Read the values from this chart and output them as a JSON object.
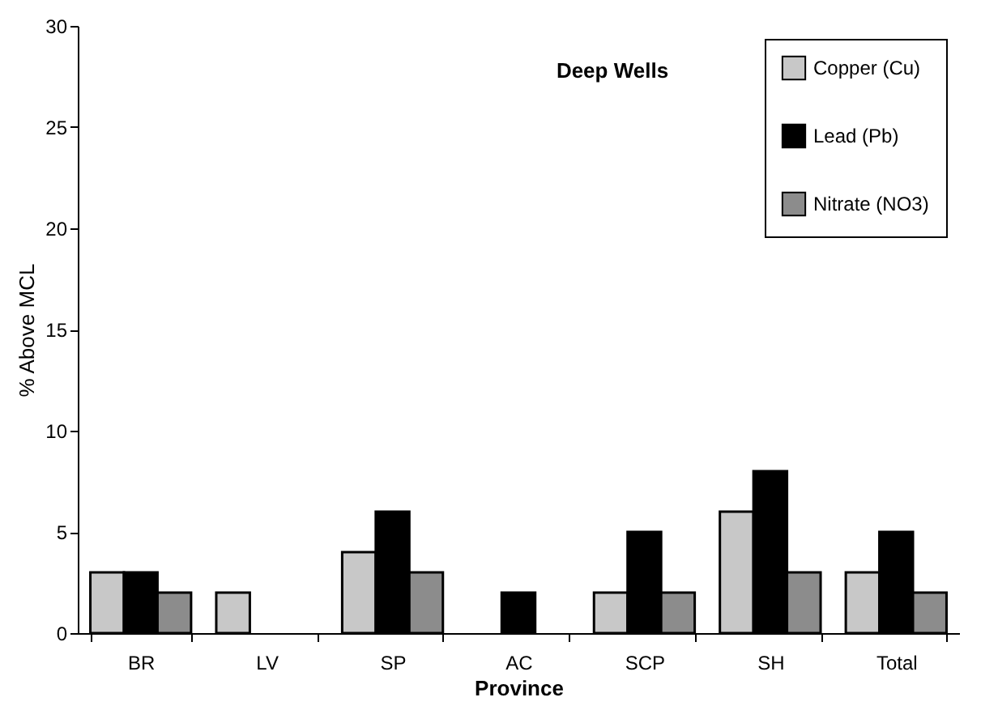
{
  "chart_data": {
    "type": "bar",
    "title": "Deep Wells",
    "xlabel": "Province",
    "ylabel": "% Above MCL",
    "categories": [
      "BR",
      "LV",
      "SP",
      "AC",
      "SCP",
      "SH",
      "Total"
    ],
    "series": [
      {
        "name": "Copper (Cu)",
        "color": "#c8c8c8",
        "values": [
          3,
          2,
          4,
          null,
          2,
          6,
          3
        ]
      },
      {
        "name": "Lead (Pb)",
        "color": "#000000",
        "values": [
          3,
          null,
          6,
          2,
          5,
          8,
          5
        ]
      },
      {
        "name": "Nitrate (NO3)",
        "color": "#8c8c8c",
        "values": [
          2,
          null,
          3,
          null,
          2,
          3,
          2
        ]
      }
    ],
    "ylim": [
      0,
      30
    ],
    "yticks": [
      0,
      5,
      10,
      15,
      20,
      25,
      30
    ],
    "grid": false,
    "legend": "top right"
  }
}
